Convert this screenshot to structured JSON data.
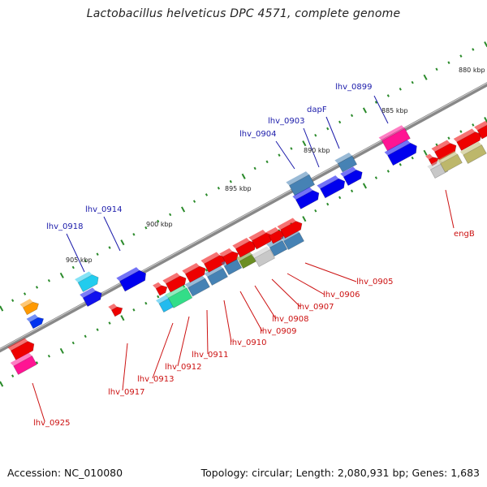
{
  "title": "Lactobacillus helveticus DPC 4571, complete genome",
  "footer": {
    "accession": "Accession: NC_010080",
    "stats": "Topology: circular; Length: 2,080,931 bp; Genes: 1,683"
  },
  "scale_labels": [
    "880 kbp",
    "885 kbp",
    "890 kbp",
    "895 kbp",
    "900 kbp",
    "905 kbp"
  ],
  "gene_labels": [
    {
      "text": "lhv_0899",
      "strand": "forward"
    },
    {
      "text": "dapF",
      "strand": "forward"
    },
    {
      "text": "lhv_0903",
      "strand": "forward"
    },
    {
      "text": "lhv_0904",
      "strand": "forward"
    },
    {
      "text": "lhv_0914",
      "strand": "forward"
    },
    {
      "text": "lhv_0918",
      "strand": "forward"
    },
    {
      "text": "engB",
      "strand": "reverse"
    },
    {
      "text": "lhv_0905",
      "strand": "reverse"
    },
    {
      "text": "lhv_0906",
      "strand": "reverse"
    },
    {
      "text": "lhv_0907",
      "strand": "reverse"
    },
    {
      "text": "lhv_0908",
      "strand": "reverse"
    },
    {
      "text": "lhv_0909",
      "strand": "reverse"
    },
    {
      "text": "lhv_0910",
      "strand": "reverse"
    },
    {
      "text": "lhv_0911",
      "strand": "reverse"
    },
    {
      "text": "lhv_0912",
      "strand": "reverse"
    },
    {
      "text": "lhv_0913",
      "strand": "reverse"
    },
    {
      "text": "lhv_0917",
      "strand": "reverse"
    },
    {
      "text": "lhv_0925",
      "strand": "reverse"
    }
  ],
  "colors": {
    "forward_label": "#1a1aaa",
    "reverse_label": "#cc1111",
    "tick_mark": "#2a8a2a",
    "backbone": "#888888"
  }
}
